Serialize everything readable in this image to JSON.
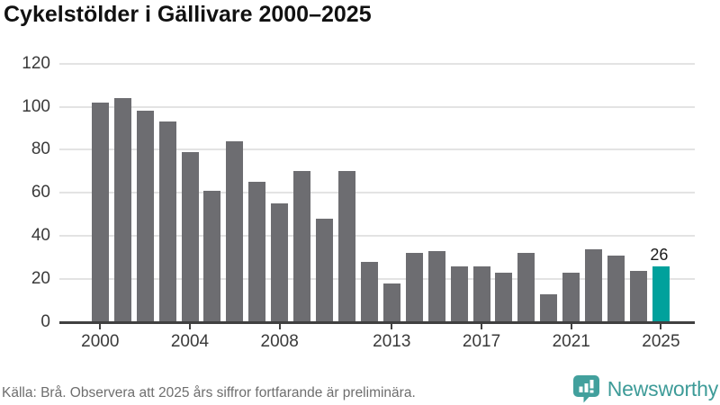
{
  "title": "Cykelstölder i Gällivare 2000–2025",
  "footer": {
    "source_note": "Källa: Brå. Observera att 2025 års siffror fortfarande är preliminära.",
    "brand": "Newsworthy"
  },
  "colors": {
    "bar": "#6d6d71",
    "highlight": "#00a19c",
    "gridline": "#e3e3e3",
    "axis": "#404040",
    "label": "#3a3a3a",
    "brand_teal": "#3d9b98",
    "logo_bubble": "#42a09d"
  },
  "chart_data": {
    "type": "bar",
    "title": "Cykelstölder i Gällivare 2000–2025",
    "x": [
      2000,
      2001,
      2002,
      2003,
      2004,
      2005,
      2006,
      2007,
      2008,
      2009,
      2010,
      2011,
      2012,
      2013,
      2014,
      2015,
      2016,
      2017,
      2018,
      2019,
      2020,
      2021,
      2022,
      2023,
      2024,
      2025
    ],
    "values": [
      102,
      104,
      98,
      93,
      79,
      61,
      84,
      65,
      55,
      70,
      48,
      70,
      28,
      18,
      32,
      33,
      26,
      26,
      23,
      32,
      13,
      23,
      34,
      31,
      24,
      26
    ],
    "highlight_index": 25,
    "highlight_label": "26",
    "xlabel": "",
    "ylabel": "",
    "ylim": [
      0,
      120
    ],
    "yticks": [
      0,
      20,
      40,
      60,
      80,
      100,
      120
    ],
    "xticks": [
      2000,
      2004,
      2008,
      2013,
      2017,
      2021,
      2025
    ],
    "grid": "horizontal",
    "legend": "none"
  }
}
